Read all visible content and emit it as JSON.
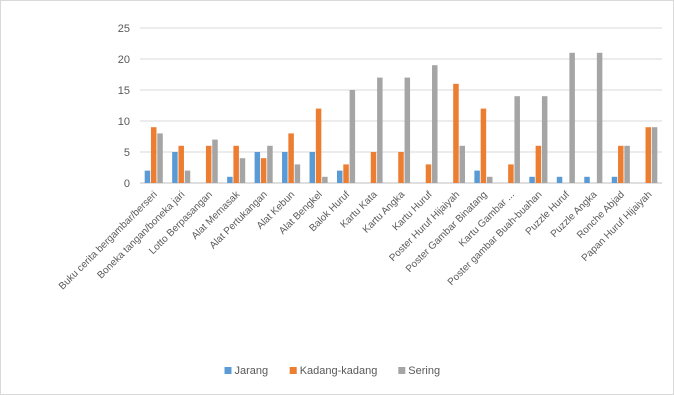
{
  "chart_data": {
    "type": "bar",
    "title": "",
    "xlabel": "",
    "ylabel": "",
    "ylim": [
      0,
      25
    ],
    "yticks": [
      0,
      5,
      10,
      15,
      20,
      25
    ],
    "grid": true,
    "legend_position": "bottom",
    "categories": [
      "Buku cerita bergambar/berseri",
      "Boneka tangan/boneka jari",
      "Lotto Berpasangan",
      "Alat Memasak",
      "Alat Pertukangan",
      "Alat Kebun",
      "Alat Bengkel",
      "Balok Huruf",
      "Kartu Kata",
      "Kartu Angka",
      "Kartu Huruf",
      "Poster Huruf Hijaiyah",
      "Poster Gambar Binatang",
      "Kartu Gambar ...",
      "Poster gambar Buah-buahan",
      "Puzzle Huruf",
      "Puzzle Angka",
      "Ronche Abjad",
      "Papan Huruf Hijaiyah"
    ],
    "series": [
      {
        "name": "Jarang",
        "color": "#5b9bd5",
        "values": [
          2,
          5,
          0,
          1,
          5,
          5,
          5,
          2,
          0,
          0,
          0,
          0,
          2,
          0,
          1,
          1,
          1,
          1,
          0
        ]
      },
      {
        "name": "Kadang-kadang",
        "color": "#ed7d31",
        "values": [
          9,
          6,
          6,
          6,
          4,
          8,
          12,
          3,
          5,
          5,
          3,
          16,
          12,
          3,
          6,
          0,
          0,
          6,
          9
        ]
      },
      {
        "name": "Sering",
        "color": "#a5a5a5",
        "values": [
          8,
          2,
          7,
          4,
          6,
          3,
          1,
          15,
          17,
          17,
          19,
          6,
          1,
          14,
          14,
          21,
          21,
          6,
          9
        ]
      }
    ]
  }
}
